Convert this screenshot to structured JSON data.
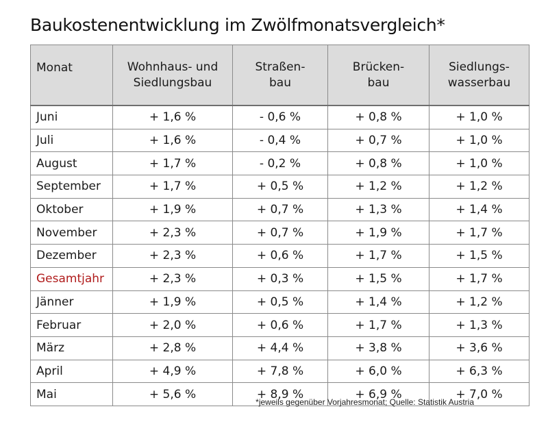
{
  "title": "Baukostenentwicklung im Zwölfmonatsvergleich*",
  "table": {
    "headers": [
      {
        "line1": "Monat",
        "line2": ""
      },
      {
        "line1": "Wohnhaus- und",
        "line2": "Siedlungsbau"
      },
      {
        "line1": "Straßen-",
        "line2": "bau"
      },
      {
        "line1": "Brücken-",
        "line2": "bau"
      },
      {
        "line1": "Siedlungs-",
        "line2": "wasserbau"
      }
    ],
    "rows": [
      {
        "month": "Juni",
        "values": [
          "+ 1,6 %",
          "- 0,6 %",
          "+ 0,8 %",
          "+ 1,0 %"
        ]
      },
      {
        "month": "Juli",
        "values": [
          "+ 1,6 %",
          "- 0,4 %",
          "+ 0,7 %",
          "+ 1,0 %"
        ]
      },
      {
        "month": "August",
        "values": [
          "+ 1,7 %",
          "- 0,2 %",
          "+ 0,8 %",
          "+ 1,0 %"
        ]
      },
      {
        "month": "September",
        "values": [
          "+ 1,7 %",
          "+ 0,5 %",
          "+ 1,2 %",
          "+ 1,2 %"
        ]
      },
      {
        "month": "Oktober",
        "values": [
          "+ 1,9 %",
          "+ 0,7 %",
          "+ 1,3 %",
          "+ 1,4 %"
        ]
      },
      {
        "month": "November",
        "values": [
          "+ 2,3 %",
          "+ 0,7 %",
          "+ 1,9 %",
          "+ 1,7 %"
        ]
      },
      {
        "month": "Dezember",
        "values": [
          "+ 2,3 %",
          "+ 0,6 %",
          "+ 1,7 %",
          "+ 1,5 %"
        ]
      },
      {
        "month": "Gesamtjahr",
        "values": [
          "+ 2,3 %",
          "+ 0,3 %",
          "+ 1,5 %",
          "+ 1,7 %"
        ],
        "highlight": true
      },
      {
        "month": "Jänner",
        "values": [
          "+ 1,9 %",
          "+ 0,5 %",
          "+ 1,4 %",
          "+ 1,2 %"
        ]
      },
      {
        "month": "Februar",
        "values": [
          "+ 2,0 %",
          "+ 0,6 %",
          "+ 1,7 %",
          "+ 1,3 %"
        ]
      },
      {
        "month": "März",
        "values": [
          "+ 2,8 %",
          "+ 4,4 %",
          "+ 3,8 %",
          "+ 3,6 %"
        ]
      },
      {
        "month": "April",
        "values": [
          "+ 4,9 %",
          "+ 7,8 %",
          "+ 6,0 %",
          "+ 6,3 %"
        ]
      },
      {
        "month": "Mai",
        "values": [
          "+ 5,6 %",
          "+ 8,9 %",
          "+ 6,9 %",
          "+ 7,0 %"
        ]
      }
    ]
  },
  "source": "*jeweils gegenüber Vorjahresmonat; Quelle: Statistik Austria",
  "colors": {
    "header_bg": "#dcdcdc",
    "highlight_text": "#b01c1c",
    "border": "#8a8a8a"
  }
}
